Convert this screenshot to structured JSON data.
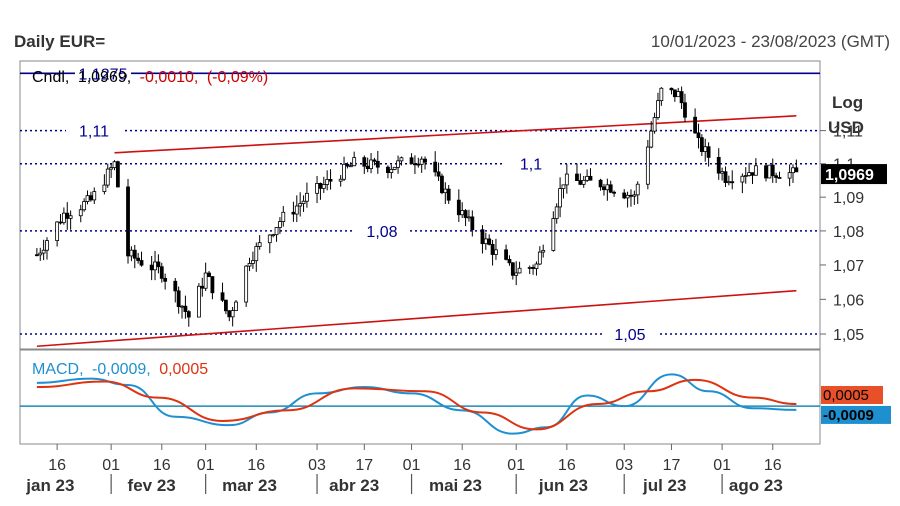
{
  "header": {
    "title": "Daily EUR=",
    "date_range": "10/01/2023 - 23/08/2023 (GMT)"
  },
  "price_legend": {
    "prefix": "Cndl,",
    "last": "1,0969,",
    "change": "-0,0010,",
    "change_pct": "(-0,09%)"
  },
  "macd_legend": {
    "label": "MACD,",
    "macd": "-0,0009,",
    "signal": "0,0005"
  },
  "scale_labels": {
    "log": "Log",
    "unit": "USD"
  },
  "colors": {
    "level_line": "#00008b",
    "channel": "#cc1111",
    "macd": "#1e90d0",
    "signal": "#dd3311",
    "zero": "#1a8ab8",
    "candle": "#000000"
  },
  "chart_data": [
    {
      "type": "candlestick",
      "title": "Daily EUR=",
      "y_scale": "log",
      "ylim": [
        1.046,
        1.131
      ],
      "y_ticks": [
        "1,05",
        "1,06",
        "1,07",
        "1,08",
        "1,09",
        "1,1",
        "1,11"
      ],
      "x_ticks": [
        "16",
        "01",
        "16",
        "01",
        "16",
        "03",
        "17",
        "01",
        "16",
        "01",
        "16",
        "03",
        "17",
        "01",
        "16"
      ],
      "months": [
        "jan 23",
        "fev 23",
        "mar 23",
        "abr 23",
        "mai 23",
        "jun 23",
        "jul 23",
        "ago 23"
      ],
      "last_value_label": "1,0969",
      "horizontal_levels": [
        {
          "value": 1.1275,
          "label": "1,1275",
          "style": "solid"
        },
        {
          "value": 1.11,
          "label": "1,11",
          "style": "dotted"
        },
        {
          "value": 1.1,
          "label": "1,1",
          "style": "dotted"
        },
        {
          "value": 1.08,
          "label": "1,08",
          "style": "dotted"
        },
        {
          "value": 1.05,
          "label": "1,05",
          "style": "dotted"
        }
      ],
      "trend_lines": [
        {
          "from": {
            "date": "2023-02-02",
            "value": 1.1033
          },
          "to": {
            "date": "2023-08-23",
            "value": 1.1145
          }
        },
        {
          "from": {
            "date": "2023-01-10",
            "value": 1.0465
          },
          "to": {
            "date": "2023-08-23",
            "value": 1.0625
          }
        }
      ],
      "close_path": [
        {
          "date": "2023-01-10",
          "v": 1.073
        },
        {
          "date": "2023-01-18",
          "v": 1.085
        },
        {
          "date": "2023-01-26",
          "v": 1.089
        },
        {
          "date": "2023-02-02",
          "v": 1.1
        },
        {
          "date": "2023-02-06",
          "v": 1.073
        },
        {
          "date": "2023-02-16",
          "v": 1.068
        },
        {
          "date": "2023-02-24",
          "v": 1.055
        },
        {
          "date": "2023-03-01",
          "v": 1.067
        },
        {
          "date": "2023-03-08",
          "v": 1.055
        },
        {
          "date": "2023-03-14",
          "v": 1.072
        },
        {
          "date": "2023-03-23",
          "v": 1.083
        },
        {
          "date": "2023-03-31",
          "v": 1.09
        },
        {
          "date": "2023-04-14",
          "v": 1.1
        },
        {
          "date": "2023-04-24",
          "v": 1.099
        },
        {
          "date": "2023-05-04",
          "v": 1.102
        },
        {
          "date": "2023-05-12",
          "v": 1.09
        },
        {
          "date": "2023-05-19",
          "v": 1.081
        },
        {
          "date": "2023-05-31",
          "v": 1.068
        },
        {
          "date": "2023-06-07",
          "v": 1.07
        },
        {
          "date": "2023-06-15",
          "v": 1.095
        },
        {
          "date": "2023-06-27",
          "v": 1.094
        },
        {
          "date": "2023-07-06",
          "v": 1.09
        },
        {
          "date": "2023-07-14",
          "v": 1.122
        },
        {
          "date": "2023-07-19",
          "v": 1.121
        },
        {
          "date": "2023-07-25",
          "v": 1.106
        },
        {
          "date": "2023-08-02",
          "v": 1.096
        },
        {
          "date": "2023-08-10",
          "v": 1.098
        },
        {
          "date": "2023-08-23",
          "v": 1.0969
        }
      ]
    },
    {
      "type": "line",
      "title": "MACD",
      "series": [
        {
          "name": "MACD",
          "points": [
            {
              "date": "2023-01-10",
              "v": 0.0055
            },
            {
              "date": "2023-01-26",
              "v": 0.0065
            },
            {
              "date": "2023-02-06",
              "v": 0.005
            },
            {
              "date": "2023-02-20",
              "v": -0.0025
            },
            {
              "date": "2023-03-08",
              "v": -0.0045
            },
            {
              "date": "2023-03-20",
              "v": -0.0015
            },
            {
              "date": "2023-04-03",
              "v": 0.003
            },
            {
              "date": "2023-04-17",
              "v": 0.0045
            },
            {
              "date": "2023-05-01",
              "v": 0.003
            },
            {
              "date": "2023-05-16",
              "v": -0.001
            },
            {
              "date": "2023-05-31",
              "v": -0.0065
            },
            {
              "date": "2023-06-10",
              "v": -0.005
            },
            {
              "date": "2023-06-22",
              "v": 0.0025
            },
            {
              "date": "2023-07-03",
              "v": 0.0
            },
            {
              "date": "2023-07-17",
              "v": 0.0075
            },
            {
              "date": "2023-07-28",
              "v": 0.0035
            },
            {
              "date": "2023-08-10",
              "v": -0.0005
            },
            {
              "date": "2023-08-23",
              "v": -0.0009
            }
          ]
        },
        {
          "name": "Signal",
          "points": [
            {
              "date": "2023-01-10",
              "v": 0.0045
            },
            {
              "date": "2023-01-30",
              "v": 0.0058
            },
            {
              "date": "2023-02-15",
              "v": 0.002
            },
            {
              "date": "2023-03-06",
              "v": -0.0035
            },
            {
              "date": "2023-03-25",
              "v": -0.001
            },
            {
              "date": "2023-04-14",
              "v": 0.0042
            },
            {
              "date": "2023-05-05",
              "v": 0.0035
            },
            {
              "date": "2023-05-22",
              "v": -0.0015
            },
            {
              "date": "2023-06-07",
              "v": -0.0055
            },
            {
              "date": "2023-06-25",
              "v": 0.0005
            },
            {
              "date": "2023-07-10",
              "v": 0.0035
            },
            {
              "date": "2023-07-24",
              "v": 0.0062
            },
            {
              "date": "2023-08-10",
              "v": 0.002
            },
            {
              "date": "2023-08-23",
              "v": 0.0005
            }
          ]
        }
      ],
      "zero_line": 0,
      "labels": {
        "macd": "-0,0009",
        "signal": "0,0005"
      }
    }
  ]
}
